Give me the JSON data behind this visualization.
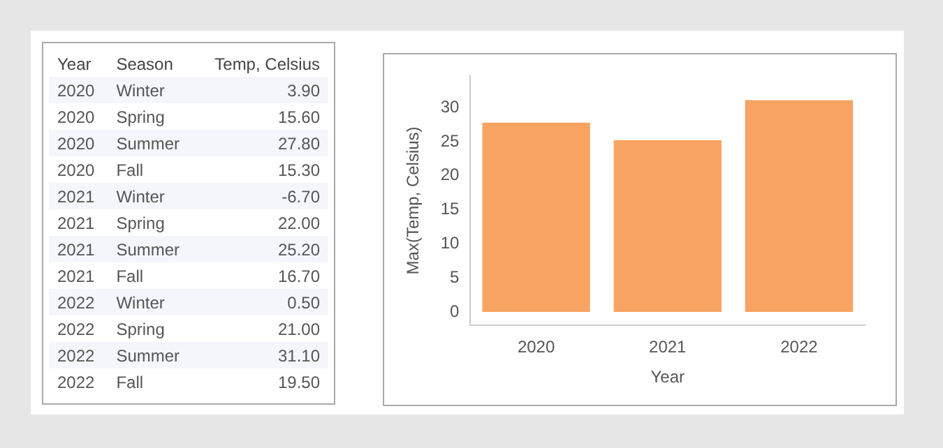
{
  "chart_data": [
    {
      "type": "other",
      "annotations": [
        "Year",
        "Season",
        "Temp, Celsius",
        "2020",
        "Winter",
        "3.90",
        "2020",
        "Spring",
        "15.60",
        "2020",
        "Summer",
        "27.80",
        "2020",
        "Fall",
        "15.30",
        "2021",
        "Winter",
        "-6.70",
        "2021",
        "Spring",
        "22.00",
        "2021",
        "Summer",
        "25.20",
        "2021",
        "Fall",
        "16.70",
        "2022",
        "Winter",
        "0.50",
        "2022",
        "Spring",
        "21.00",
        "2022",
        "Summer",
        "31.10",
        "2022",
        "Fall",
        "19.50"
      ]
    },
    {
      "type": "bar",
      "categories": [
        "2020",
        "2021",
        "2022"
      ],
      "values": [
        27.8,
        25.2,
        31.1
      ],
      "color": "#f9a362",
      "xlabel": "Year",
      "ylabel": "Max(Temp, Celsius)",
      "ylim": [
        -2,
        34.7
      ],
      "yticks": [
        0,
        5,
        10,
        15,
        20,
        25,
        30
      ],
      "grid": false,
      "legend": false
    }
  ]
}
